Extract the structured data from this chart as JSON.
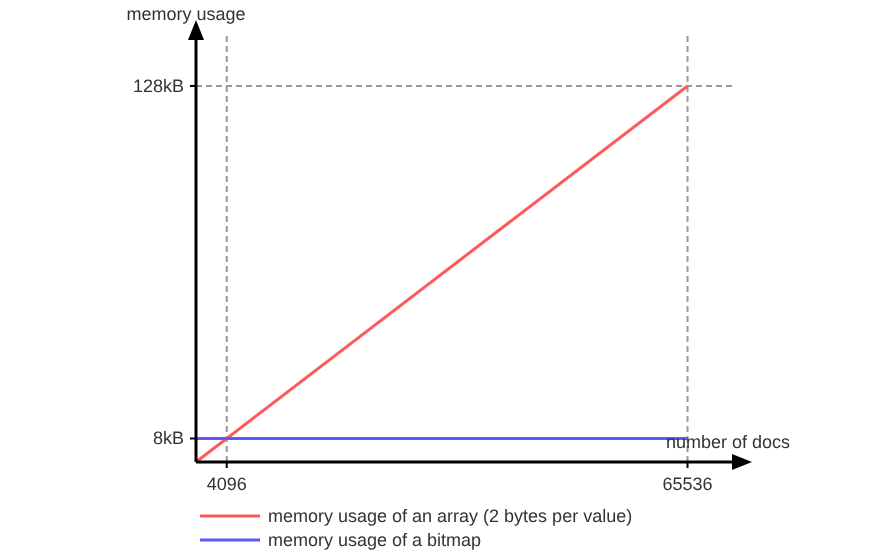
{
  "chart_data": {
    "type": "line",
    "xlabel": "number of docs",
    "ylabel": "memory usage",
    "x": [
      0,
      65536
    ],
    "series": [
      {
        "name": "memory usage of an array (2 bytes per value)",
        "color": "#ff5a5a",
        "values": [
          0,
          128
        ]
      },
      {
        "name": "memory usage of a bitmap",
        "color": "#5a5aff",
        "values": [
          8,
          8
        ]
      }
    ],
    "xlim": [
      0,
      72000
    ],
    "ylim": [
      0,
      145
    ],
    "xticks": [
      4096,
      65536
    ],
    "yticks": [
      {
        "value": 8,
        "label": "8kB"
      },
      {
        "value": 128,
        "label": "128kB"
      }
    ],
    "ref_lines": [
      {
        "axis": "x",
        "value": 4096,
        "line_style": "dashed"
      },
      {
        "axis": "x",
        "value": 65536,
        "line_style": "dashed"
      },
      {
        "axis": "y",
        "value": 128,
        "line_style": "dashed"
      }
    ],
    "legend": "bottom",
    "grid": false,
    "line_style": "solid"
  }
}
